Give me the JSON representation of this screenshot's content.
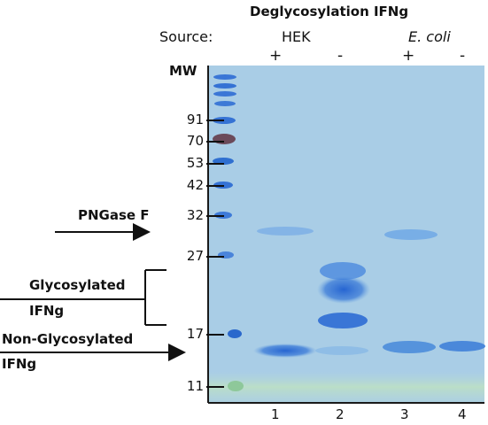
{
  "figure": {
    "title": "Deglycosylation IFNg",
    "source_label": "Source:",
    "sources": [
      {
        "name": "HEK",
        "italic": false
      },
      {
        "name": "E. coli",
        "italic": true
      }
    ],
    "lane_treatments": [
      "+",
      "-",
      "+",
      "-"
    ],
    "lane_numbers": [
      "1",
      "2",
      "3",
      "4"
    ],
    "mw_label": "MW",
    "mw_markers": [
      "91",
      "70",
      "53",
      "42",
      "32",
      "27",
      "17",
      "11"
    ],
    "annotations": {
      "pngase": "PNGase F",
      "glycosylated_line1": "Glycosylated",
      "glycosylated_line2": "IFNg",
      "nonglycosylated_line1": "Non-Glycosylated",
      "nonglycosylated_line2": "IFNg"
    }
  },
  "colors": {
    "gel_background": "#a9cde6",
    "gel_border": "#111111",
    "band_strong": "#2f6fd0",
    "band_faint": "#7fb0e6",
    "ladder_dark_band": "#6b4a5a",
    "dye_front": "#b8dcc8"
  }
}
